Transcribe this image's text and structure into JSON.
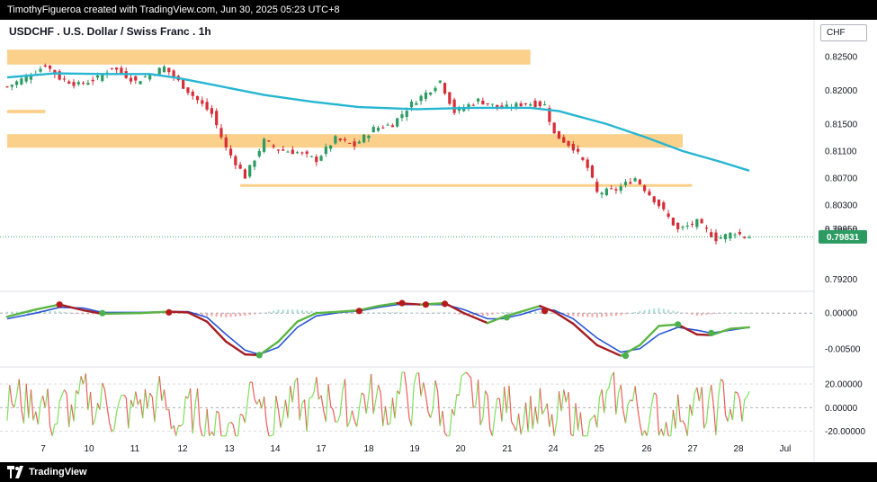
{
  "header": {
    "attribution": "TimothyFigueroa created with TradingView.com, Jun 30, 2025 05:23 UTC+8"
  },
  "symbol": {
    "title": "USDCHF . U.S. Dollar / Swiss Franc . 1h",
    "currency": "CHF"
  },
  "footer": {
    "logo_text": "TradingView"
  },
  "colors": {
    "ma": "#26b6d1",
    "zone": "#fbd08a",
    "bull": "#2c9b62",
    "bear": "#d62d36",
    "macd_green": "#5bb543",
    "macd_red": "#a51d23",
    "macd_blue": "#2855d6",
    "dot_green": "#4caf50",
    "dot_red": "#b71c1c",
    "rsi_green": "#7ee05a",
    "rsi_red": "#ef5b5b",
    "price_tag": "#2c9b62"
  },
  "chart_data": [
    {
      "type": "candlestick",
      "x_labels": [
        "7",
        "10",
        "11",
        "12",
        "13",
        "14",
        "17",
        "18",
        "19",
        "20",
        "21",
        "24",
        "25",
        "26",
        "27",
        "28",
        "Jul"
      ],
      "y_ticks": [
        0.825,
        0.82,
        0.815,
        0.811,
        0.807,
        0.803,
        0.7995,
        0.792
      ],
      "y_tick_labels": [
        "0.82500",
        "0.82000",
        "0.81500",
        "0.81100",
        "0.80700",
        "0.80300",
        "0.79950",
        "0.79200"
      ],
      "ylim": [
        0.7905,
        0.8275
      ],
      "last_price": 0.79831,
      "last_price_label": "0.79831",
      "overlapping_label": "0.79900",
      "zones": [
        {
          "x": [
            0,
            110
          ],
          "y": [
            0.8238,
            0.826
          ]
        },
        {
          "x": [
            0,
            8
          ],
          "y": [
            0.8166,
            0.8171
          ]
        },
        {
          "x": [
            0,
            142
          ],
          "y": [
            0.8115,
            0.8135
          ]
        },
        {
          "x": [
            49,
            144
          ],
          "y": [
            0.8057,
            0.8061
          ]
        }
      ],
      "moving_average": [
        [
          0,
          0.8219
        ],
        [
          10,
          0.8225
        ],
        [
          20,
          0.8224
        ],
        [
          30,
          0.8224
        ],
        [
          36,
          0.8218
        ],
        [
          44,
          0.8207
        ],
        [
          54,
          0.8193
        ],
        [
          64,
          0.8183
        ],
        [
          74,
          0.8175
        ],
        [
          86,
          0.8172
        ],
        [
          98,
          0.8174
        ],
        [
          110,
          0.8174
        ],
        [
          116,
          0.8169
        ],
        [
          126,
          0.815
        ],
        [
          134,
          0.8131
        ],
        [
          142,
          0.811
        ],
        [
          150,
          0.8094
        ],
        [
          156,
          0.8081
        ]
      ],
      "price_path": [
        [
          0,
          0.8205
        ],
        [
          6,
          0.8227
        ],
        [
          8,
          0.8238
        ],
        [
          11,
          0.8218
        ],
        [
          15,
          0.8208
        ],
        [
          19,
          0.8218
        ],
        [
          22,
          0.8234
        ],
        [
          27,
          0.8213
        ],
        [
          33,
          0.8234
        ],
        [
          36,
          0.8213
        ],
        [
          39,
          0.8192
        ],
        [
          43,
          0.8165
        ],
        [
          46,
          0.8114
        ],
        [
          50,
          0.8072
        ],
        [
          54,
          0.8125
        ],
        [
          57,
          0.8112
        ],
        [
          61,
          0.8108
        ],
        [
          65,
          0.8097
        ],
        [
          69,
          0.8128
        ],
        [
          73,
          0.8118
        ],
        [
          77,
          0.8143
        ],
        [
          81,
          0.815
        ],
        [
          85,
          0.818
        ],
        [
          89,
          0.8201
        ],
        [
          91,
          0.8214
        ],
        [
          94,
          0.8168
        ],
        [
          99,
          0.8185
        ],
        [
          104,
          0.8173
        ],
        [
          109,
          0.8181
        ],
        [
          113,
          0.8178
        ],
        [
          115,
          0.8135
        ],
        [
          119,
          0.8115
        ],
        [
          122,
          0.8085
        ],
        [
          124,
          0.8048
        ],
        [
          128,
          0.8053
        ],
        [
          132,
          0.807
        ],
        [
          137,
          0.803
        ],
        [
          141,
          0.7993
        ],
        [
          145,
          0.8005
        ],
        [
          149,
          0.798
        ],
        [
          153,
          0.799
        ],
        [
          155,
          0.7983
        ]
      ]
    },
    {
      "type": "line",
      "name": "macd",
      "y_ticks": [
        0.0,
        -0.005
      ],
      "y_tick_labels": [
        "0.00000",
        "-0.00500"
      ],
      "ylim": [
        -0.0073,
        0.0028
      ],
      "fast_line": [
        [
          0,
          -0.0005
        ],
        [
          6,
          0.0005
        ],
        [
          11,
          0.0012
        ],
        [
          16,
          0.0004
        ],
        [
          20,
          -0.0001
        ],
        [
          28,
          0.0
        ],
        [
          34,
          0.0002
        ],
        [
          38,
          0.0001
        ],
        [
          42,
          -0.0012
        ],
        [
          46,
          -0.004
        ],
        [
          50,
          -0.0058
        ],
        [
          53,
          -0.0059
        ],
        [
          57,
          -0.004
        ],
        [
          61,
          -0.0012
        ],
        [
          65,
          0.0
        ],
        [
          70,
          0.0002
        ],
        [
          74,
          0.0004
        ],
        [
          78,
          0.001
        ],
        [
          82,
          0.0014
        ],
        [
          87,
          0.0012
        ],
        [
          92,
          0.0014
        ],
        [
          96,
          0.0
        ],
        [
          101,
          -0.0014
        ],
        [
          104,
          -0.0006
        ],
        [
          108,
          0.0002
        ],
        [
          112,
          0.001
        ],
        [
          115,
          0.0002
        ],
        [
          119,
          -0.0015
        ],
        [
          124,
          -0.0045
        ],
        [
          129,
          -0.006
        ],
        [
          133,
          -0.0045
        ],
        [
          137,
          -0.0018
        ],
        [
          141,
          -0.0016
        ],
        [
          145,
          -0.003
        ],
        [
          148,
          -0.0031
        ],
        [
          152,
          -0.0022
        ],
        [
          156,
          -0.002
        ]
      ],
      "slow_line": [
        [
          0,
          -0.0008
        ],
        [
          6,
          0.0
        ],
        [
          11,
          0.0008
        ],
        [
          16,
          0.0007
        ],
        [
          20,
          0.0001
        ],
        [
          28,
          0.0001
        ],
        [
          34,
          0.0002
        ],
        [
          38,
          0.0002
        ],
        [
          42,
          -0.0006
        ],
        [
          46,
          -0.003
        ],
        [
          50,
          -0.0052
        ],
        [
          53,
          -0.0058
        ],
        [
          57,
          -0.0048
        ],
        [
          61,
          -0.002
        ],
        [
          65,
          -0.0004
        ],
        [
          70,
          0.0001
        ],
        [
          74,
          0.0003
        ],
        [
          78,
          0.0008
        ],
        [
          82,
          0.0012
        ],
        [
          87,
          0.0012
        ],
        [
          92,
          0.0012
        ],
        [
          96,
          0.0005
        ],
        [
          101,
          -0.0008
        ],
        [
          104,
          -0.0008
        ],
        [
          108,
          -0.0002
        ],
        [
          112,
          0.0006
        ],
        [
          115,
          0.0004
        ],
        [
          119,
          -0.0008
        ],
        [
          124,
          -0.0035
        ],
        [
          129,
          -0.0055
        ],
        [
          133,
          -0.005
        ],
        [
          137,
          -0.003
        ],
        [
          141,
          -0.002
        ],
        [
          145,
          -0.0024
        ],
        [
          148,
          -0.0028
        ],
        [
          152,
          -0.0024
        ],
        [
          156,
          -0.002
        ]
      ],
      "cross_dots": [
        [
          11,
          0.0012,
          "red"
        ],
        [
          20,
          0.0,
          "green"
        ],
        [
          34,
          0.0001,
          "red"
        ],
        [
          53,
          -0.0059,
          "green"
        ],
        [
          74,
          0.0003,
          "red"
        ],
        [
          83,
          0.0014,
          "red"
        ],
        [
          88,
          0.0012,
          "red"
        ],
        [
          92,
          0.0013,
          "red"
        ],
        [
          105,
          -0.0006,
          "green"
        ],
        [
          113,
          0.0003,
          "red"
        ],
        [
          130,
          -0.006,
          "green"
        ],
        [
          141,
          -0.0016,
          "green"
        ],
        [
          148,
          -0.0028,
          "green"
        ]
      ]
    },
    {
      "type": "line",
      "name": "oscillator",
      "y_ticks": [
        20,
        0,
        -20
      ],
      "y_tick_labels": [
        "20.00000",
        "0.00000",
        "-20.00000"
      ],
      "ylim": [
        -28,
        33
      ],
      "series_seed": 7
    }
  ]
}
